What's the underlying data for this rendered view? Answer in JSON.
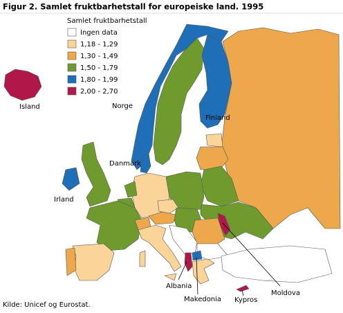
{
  "title": "Figur 2. Samlet fruktbarhetstall for europeiske land. 1995",
  "legend": {
    "title": "Samlet fruktbarhetstall",
    "items": [
      {
        "label": "Ingen data",
        "color": "#ffffff"
      },
      {
        "label": "1,18 - 1,29",
        "color": "#fbd49a"
      },
      {
        "label": "1,30 - 1,49",
        "color": "#eca84a"
      },
      {
        "label": "1,50 - 1,79",
        "color": "#6f9a2e"
      },
      {
        "label": "1,80 - 1,99",
        "color": "#1f6fb8"
      },
      {
        "label": "2,00 - 2,70",
        "color": "#b0184a"
      }
    ]
  },
  "labels": {
    "iceland": "Island",
    "norway": "Norge",
    "finland": "Finland",
    "denmark": "Danmark",
    "ireland": "Irland",
    "albania": "Albania",
    "macedonia": "Makedonia",
    "cyprus": "Kypros",
    "moldova": "Moldova"
  },
  "source": "Kilde: Unicef og Eurostat."
}
